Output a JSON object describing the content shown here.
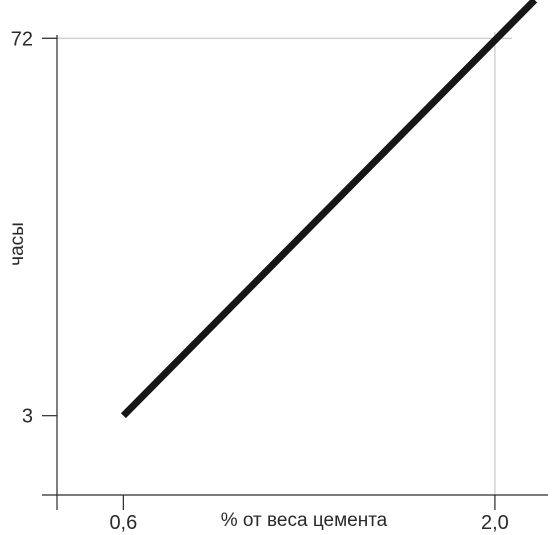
{
  "chart_data": {
    "type": "line",
    "title": "",
    "xlabel": "% от веса цемента",
    "ylabel": "часы",
    "x_ticks": [
      {
        "value": 0.6,
        "label": "0,6"
      },
      {
        "value": 2.0,
        "label": "2,0"
      }
    ],
    "y_ticks": [
      {
        "value": 3,
        "label": "3"
      },
      {
        "value": 72,
        "label": "72"
      }
    ],
    "xlim": [
      0.35,
      2.2
    ],
    "ylim": [
      -11.5,
      79
    ],
    "grid": {
      "x": [
        2.0
      ],
      "y": [
        72
      ]
    },
    "series": [
      {
        "name": "",
        "color": "#161616",
        "x": [
          0.6,
          2.15
        ],
        "y": [
          3,
          79
        ]
      }
    ]
  }
}
